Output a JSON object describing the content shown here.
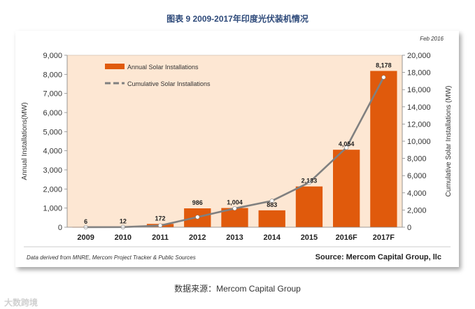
{
  "figure_title": "图表 9  2009-2017年印度光伏装机情况",
  "caption": "数据来源：Mercom Capital Group",
  "watermark": "大数跨境",
  "colors": {
    "bar": "#e05a0c",
    "line": "#808080",
    "plot_bg": "#fde7d3",
    "title": "#2e4a7a"
  },
  "chart_data": {
    "type": "bar",
    "date_note": "Feb 2016",
    "categories": [
      "2009",
      "2010",
      "2011",
      "2012",
      "2013",
      "2014",
      "2015",
      "2016F",
      "2017F"
    ],
    "series": [
      {
        "name": "Annual Solar Installations",
        "type": "bar",
        "axis": "left",
        "values": [
          6,
          12,
          172,
          986,
          1004,
          883,
          2133,
          4054,
          8178
        ]
      },
      {
        "name": "Cumulative Solar Installations",
        "type": "line",
        "axis": "right",
        "values": [
          6,
          18,
          190,
          1176,
          2180,
          3063,
          5196,
          9250,
          17428
        ]
      }
    ],
    "data_labels": [
      "6",
      "12",
      "172",
      "986",
      "1,004",
      "883",
      "2,133",
      "4,054",
      "8,178"
    ],
    "ylabel": "Annual Installations(MW)",
    "y2label": "Cumulative Solar Installations (MW)",
    "ylim": [
      0,
      9000
    ],
    "y2lim": [
      0,
      20000
    ],
    "yticks": [
      "0",
      "1,000",
      "2,000",
      "3,000",
      "4,000",
      "5,000",
      "6,000",
      "7,000",
      "8,000",
      "9,000"
    ],
    "y2ticks": [
      "0",
      "2,000",
      "4,000",
      "6,000",
      "8,000",
      "10,000",
      "12,000",
      "14,000",
      "16,000",
      "18,000",
      "20,000"
    ],
    "legend_position": "top-left",
    "footnote": "Data derived from MNRE, Mercom Project Tracker & Public  Sources",
    "source": "Source: Mercom Capital Group, llc"
  }
}
